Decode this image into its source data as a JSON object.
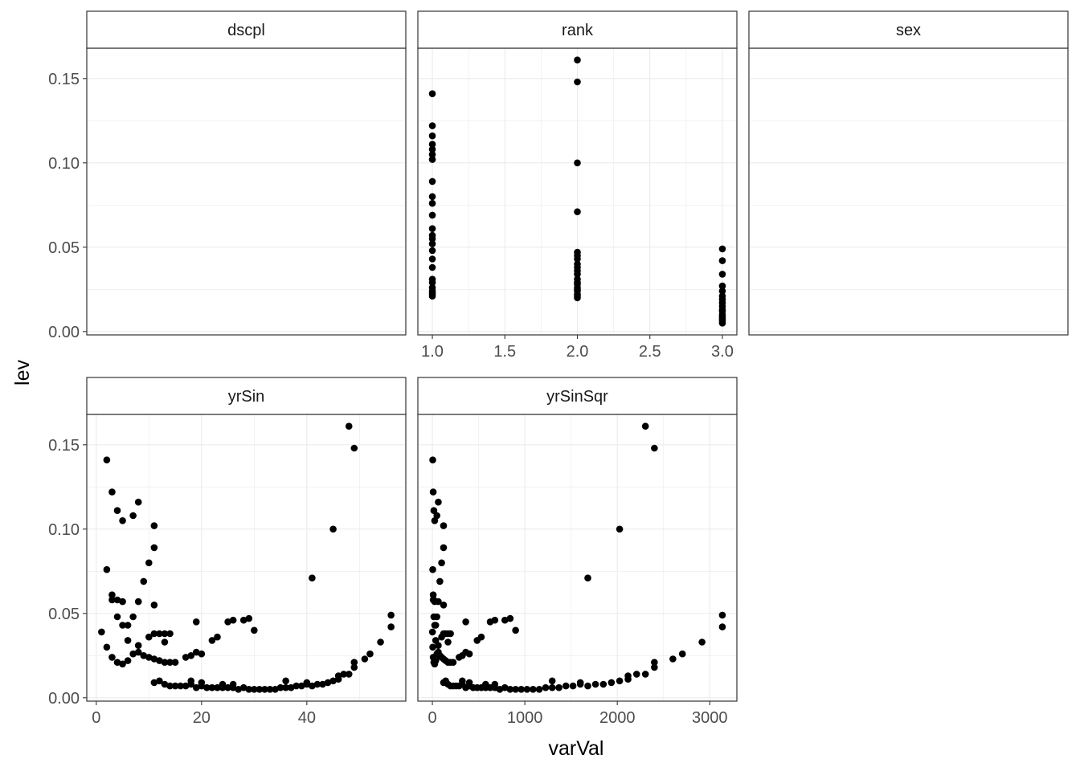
{
  "axis_titles": {
    "x": "varVal",
    "y": "lev"
  },
  "colors": {
    "point": "#000000",
    "strip_bg": "#ffffff",
    "grid": "#ebebeb",
    "border": "#333333"
  },
  "chart_data": [
    {
      "type": "scatter",
      "title": "dscpl",
      "xlabel": "varVal",
      "ylabel": "lev",
      "ylim": [
        -0.002,
        0.168
      ],
      "y_ticks": [
        "0.00",
        "0.05",
        "0.10",
        "0.15"
      ],
      "x_ticks": [],
      "grid": true,
      "points": []
    },
    {
      "type": "scatter",
      "title": "rank",
      "xlabel": "varVal",
      "ylabel": "lev",
      "xlim": [
        0.9,
        3.1
      ],
      "ylim": [
        -0.002,
        0.168
      ],
      "x_ticks": [
        "1.0",
        "1.5",
        "2.0",
        "2.5",
        "3.0"
      ],
      "y_ticks": [
        "0.00",
        "0.05",
        "0.10",
        "0.15"
      ],
      "grid": true,
      "points": [
        [
          1,
          0.141
        ],
        [
          1,
          0.122
        ],
        [
          1,
          0.116
        ],
        [
          1,
          0.111
        ],
        [
          1,
          0.108
        ],
        [
          1,
          0.105
        ],
        [
          1,
          0.102
        ],
        [
          1,
          0.089
        ],
        [
          1,
          0.08
        ],
        [
          1,
          0.076
        ],
        [
          1,
          0.069
        ],
        [
          1,
          0.061
        ],
        [
          1,
          0.057
        ],
        [
          1,
          0.055
        ],
        [
          1,
          0.052
        ],
        [
          1,
          0.048
        ],
        [
          1,
          0.043
        ],
        [
          1,
          0.038
        ],
        [
          1,
          0.031
        ],
        [
          1,
          0.029
        ],
        [
          1,
          0.026
        ],
        [
          1,
          0.024
        ],
        [
          1,
          0.023
        ],
        [
          1,
          0.022
        ],
        [
          1,
          0.021
        ],
        [
          2,
          0.161
        ],
        [
          2,
          0.148
        ],
        [
          2,
          0.1
        ],
        [
          2,
          0.071
        ],
        [
          2,
          0.047
        ],
        [
          2,
          0.045
        ],
        [
          2,
          0.043
        ],
        [
          2,
          0.04
        ],
        [
          2,
          0.038
        ],
        [
          2,
          0.036
        ],
        [
          2,
          0.034
        ],
        [
          2,
          0.031
        ],
        [
          2,
          0.029
        ],
        [
          2,
          0.028
        ],
        [
          2,
          0.026
        ],
        [
          2,
          0.025
        ],
        [
          2,
          0.024
        ],
        [
          2,
          0.022
        ],
        [
          2,
          0.021
        ],
        [
          2,
          0.02
        ],
        [
          3,
          0.049
        ],
        [
          3,
          0.042
        ],
        [
          3,
          0.034
        ],
        [
          3,
          0.027
        ],
        [
          3,
          0.024
        ],
        [
          3,
          0.021
        ],
        [
          3,
          0.019
        ],
        [
          3,
          0.017
        ],
        [
          3,
          0.015
        ],
        [
          3,
          0.013
        ],
        [
          3,
          0.012
        ],
        [
          3,
          0.01
        ],
        [
          3,
          0.009
        ],
        [
          3,
          0.008
        ],
        [
          3,
          0.007
        ],
        [
          3,
          0.006
        ],
        [
          3,
          0.005
        ]
      ]
    },
    {
      "type": "scatter",
      "title": "sex",
      "xlabel": "varVal",
      "ylabel": "lev",
      "ylim": [
        -0.002,
        0.168
      ],
      "y_ticks": [
        "0.00",
        "0.05",
        "0.10",
        "0.15"
      ],
      "x_ticks": [],
      "grid": true,
      "points": []
    },
    {
      "type": "scatter",
      "title": "yrSin",
      "xlabel": "varVal",
      "ylabel": "lev",
      "xlim": [
        -1.8,
        58.8
      ],
      "ylim": [
        -0.002,
        0.168
      ],
      "x_ticks": [
        "0",
        "20",
        "40"
      ],
      "y_ticks": [
        "0.00",
        "0.05",
        "0.10",
        "0.15"
      ],
      "grid": true,
      "points": [
        [
          1,
          0.039
        ],
        [
          2,
          0.141
        ],
        [
          2,
          0.076
        ],
        [
          2,
          0.03
        ],
        [
          3,
          0.122
        ],
        [
          3,
          0.061
        ],
        [
          3,
          0.058
        ],
        [
          3,
          0.024
        ],
        [
          4,
          0.111
        ],
        [
          4,
          0.058
        ],
        [
          4,
          0.048
        ],
        [
          4,
          0.021
        ],
        [
          5,
          0.105
        ],
        [
          5,
          0.057
        ],
        [
          5,
          0.043
        ],
        [
          5,
          0.02
        ],
        [
          6,
          0.043
        ],
        [
          6,
          0.034
        ],
        [
          6,
          0.022
        ],
        [
          7,
          0.108
        ],
        [
          7,
          0.048
        ],
        [
          7,
          0.026
        ],
        [
          8,
          0.116
        ],
        [
          8,
          0.057
        ],
        [
          8,
          0.031
        ],
        [
          8,
          0.027
        ],
        [
          9,
          0.069
        ],
        [
          9,
          0.025
        ],
        [
          10,
          0.08
        ],
        [
          10,
          0.036
        ],
        [
          10,
          0.024
        ],
        [
          11,
          0.102
        ],
        [
          11,
          0.089
        ],
        [
          11,
          0.055
        ],
        [
          11,
          0.038
        ],
        [
          11,
          0.023
        ],
        [
          11,
          0.009
        ],
        [
          12,
          0.038
        ],
        [
          12,
          0.022
        ],
        [
          12,
          0.01
        ],
        [
          13,
          0.038
        ],
        [
          13,
          0.033
        ],
        [
          13,
          0.021
        ],
        [
          13,
          0.008
        ],
        [
          14,
          0.038
        ],
        [
          14,
          0.021
        ],
        [
          14,
          0.007
        ],
        [
          15,
          0.021
        ],
        [
          15,
          0.007
        ],
        [
          16,
          0.007
        ],
        [
          17,
          0.024
        ],
        [
          17,
          0.007
        ],
        [
          18,
          0.025
        ],
        [
          18,
          0.01
        ],
        [
          18,
          0.008
        ],
        [
          19,
          0.045
        ],
        [
          19,
          0.027
        ],
        [
          19,
          0.006
        ],
        [
          20,
          0.026
        ],
        [
          20,
          0.009
        ],
        [
          20,
          0.007
        ],
        [
          21,
          0.006
        ],
        [
          22,
          0.006
        ],
        [
          22,
          0.034
        ],
        [
          23,
          0.036
        ],
        [
          23,
          0.006
        ],
        [
          24,
          0.008
        ],
        [
          24,
          0.006
        ],
        [
          25,
          0.045
        ],
        [
          25,
          0.006
        ],
        [
          26,
          0.046
        ],
        [
          26,
          0.008
        ],
        [
          26,
          0.006
        ],
        [
          27,
          0.005
        ],
        [
          28,
          0.046
        ],
        [
          28,
          0.006
        ],
        [
          29,
          0.047
        ],
        [
          29,
          0.005
        ],
        [
          30,
          0.04
        ],
        [
          30,
          0.005
        ],
        [
          31,
          0.005
        ],
        [
          32,
          0.005
        ],
        [
          33,
          0.005
        ],
        [
          34,
          0.005
        ],
        [
          35,
          0.006
        ],
        [
          36,
          0.006
        ],
        [
          36,
          0.01
        ],
        [
          37,
          0.006
        ],
        [
          38,
          0.007
        ],
        [
          39,
          0.007
        ],
        [
          40,
          0.008
        ],
        [
          40,
          0.009
        ],
        [
          41,
          0.071
        ],
        [
          41,
          0.007
        ],
        [
          42,
          0.008
        ],
        [
          43,
          0.008
        ],
        [
          44,
          0.009
        ],
        [
          45,
          0.1
        ],
        [
          45,
          0.01
        ],
        [
          46,
          0.011
        ],
        [
          46,
          0.013
        ],
        [
          47,
          0.014
        ],
        [
          48,
          0.161
        ],
        [
          48,
          0.014
        ],
        [
          49,
          0.148
        ],
        [
          49,
          0.018
        ],
        [
          49,
          0.021
        ],
        [
          51,
          0.023
        ],
        [
          52,
          0.026
        ],
        [
          54,
          0.033
        ],
        [
          56,
          0.049
        ],
        [
          56,
          0.042
        ]
      ]
    },
    {
      "type": "scatter",
      "title": "yrSinSqr",
      "xlabel": "varVal",
      "ylabel": "lev",
      "xlim": [
        -157,
        3293
      ],
      "ylim": [
        -0.002,
        0.168
      ],
      "x_ticks": [
        "0",
        "1000",
        "2000",
        "3000"
      ],
      "y_ticks": [
        "0.00",
        "0.05",
        "0.10",
        "0.15"
      ],
      "grid": true,
      "points": [
        [
          1,
          0.039
        ],
        [
          4,
          0.141
        ],
        [
          4,
          0.076
        ],
        [
          4,
          0.03
        ],
        [
          9,
          0.122
        ],
        [
          9,
          0.061
        ],
        [
          9,
          0.058
        ],
        [
          9,
          0.024
        ],
        [
          16,
          0.111
        ],
        [
          16,
          0.058
        ],
        [
          16,
          0.048
        ],
        [
          16,
          0.021
        ],
        [
          25,
          0.105
        ],
        [
          25,
          0.057
        ],
        [
          25,
          0.043
        ],
        [
          25,
          0.02
        ],
        [
          36,
          0.043
        ],
        [
          36,
          0.034
        ],
        [
          36,
          0.022
        ],
        [
          49,
          0.108
        ],
        [
          49,
          0.048
        ],
        [
          49,
          0.026
        ],
        [
          64,
          0.116
        ],
        [
          64,
          0.057
        ],
        [
          64,
          0.031
        ],
        [
          64,
          0.027
        ],
        [
          81,
          0.069
        ],
        [
          81,
          0.025
        ],
        [
          100,
          0.08
        ],
        [
          100,
          0.036
        ],
        [
          100,
          0.024
        ],
        [
          121,
          0.102
        ],
        [
          121,
          0.089
        ],
        [
          121,
          0.055
        ],
        [
          121,
          0.038
        ],
        [
          121,
          0.023
        ],
        [
          121,
          0.009
        ],
        [
          144,
          0.038
        ],
        [
          144,
          0.022
        ],
        [
          144,
          0.01
        ],
        [
          169,
          0.038
        ],
        [
          169,
          0.033
        ],
        [
          169,
          0.021
        ],
        [
          169,
          0.008
        ],
        [
          196,
          0.038
        ],
        [
          196,
          0.021
        ],
        [
          196,
          0.007
        ],
        [
          225,
          0.021
        ],
        [
          225,
          0.007
        ],
        [
          256,
          0.007
        ],
        [
          289,
          0.024
        ],
        [
          289,
          0.007
        ],
        [
          324,
          0.025
        ],
        [
          324,
          0.01
        ],
        [
          324,
          0.008
        ],
        [
          361,
          0.045
        ],
        [
          361,
          0.027
        ],
        [
          361,
          0.006
        ],
        [
          400,
          0.026
        ],
        [
          400,
          0.009
        ],
        [
          400,
          0.007
        ],
        [
          441,
          0.006
        ],
        [
          484,
          0.006
        ],
        [
          484,
          0.034
        ],
        [
          529,
          0.036
        ],
        [
          529,
          0.006
        ],
        [
          576,
          0.008
        ],
        [
          576,
          0.006
        ],
        [
          625,
          0.045
        ],
        [
          625,
          0.006
        ],
        [
          676,
          0.046
        ],
        [
          676,
          0.008
        ],
        [
          676,
          0.006
        ],
        [
          729,
          0.005
        ],
        [
          784,
          0.046
        ],
        [
          784,
          0.006
        ],
        [
          841,
          0.047
        ],
        [
          841,
          0.005
        ],
        [
          900,
          0.04
        ],
        [
          900,
          0.005
        ],
        [
          961,
          0.005
        ],
        [
          1024,
          0.005
        ],
        [
          1089,
          0.005
        ],
        [
          1156,
          0.005
        ],
        [
          1225,
          0.006
        ],
        [
          1296,
          0.006
        ],
        [
          1296,
          0.01
        ],
        [
          1369,
          0.006
        ],
        [
          1444,
          0.007
        ],
        [
          1521,
          0.007
        ],
        [
          1600,
          0.008
        ],
        [
          1600,
          0.009
        ],
        [
          1681,
          0.071
        ],
        [
          1681,
          0.007
        ],
        [
          1764,
          0.008
        ],
        [
          1849,
          0.008
        ],
        [
          1936,
          0.009
        ],
        [
          2025,
          0.1
        ],
        [
          2025,
          0.01
        ],
        [
          2116,
          0.011
        ],
        [
          2116,
          0.013
        ],
        [
          2209,
          0.014
        ],
        [
          2304,
          0.161
        ],
        [
          2304,
          0.014
        ],
        [
          2401,
          0.148
        ],
        [
          2401,
          0.018
        ],
        [
          2401,
          0.021
        ],
        [
          2601,
          0.023
        ],
        [
          2704,
          0.026
        ],
        [
          2916,
          0.033
        ],
        [
          3136,
          0.049
        ],
        [
          3136,
          0.042
        ]
      ]
    }
  ]
}
